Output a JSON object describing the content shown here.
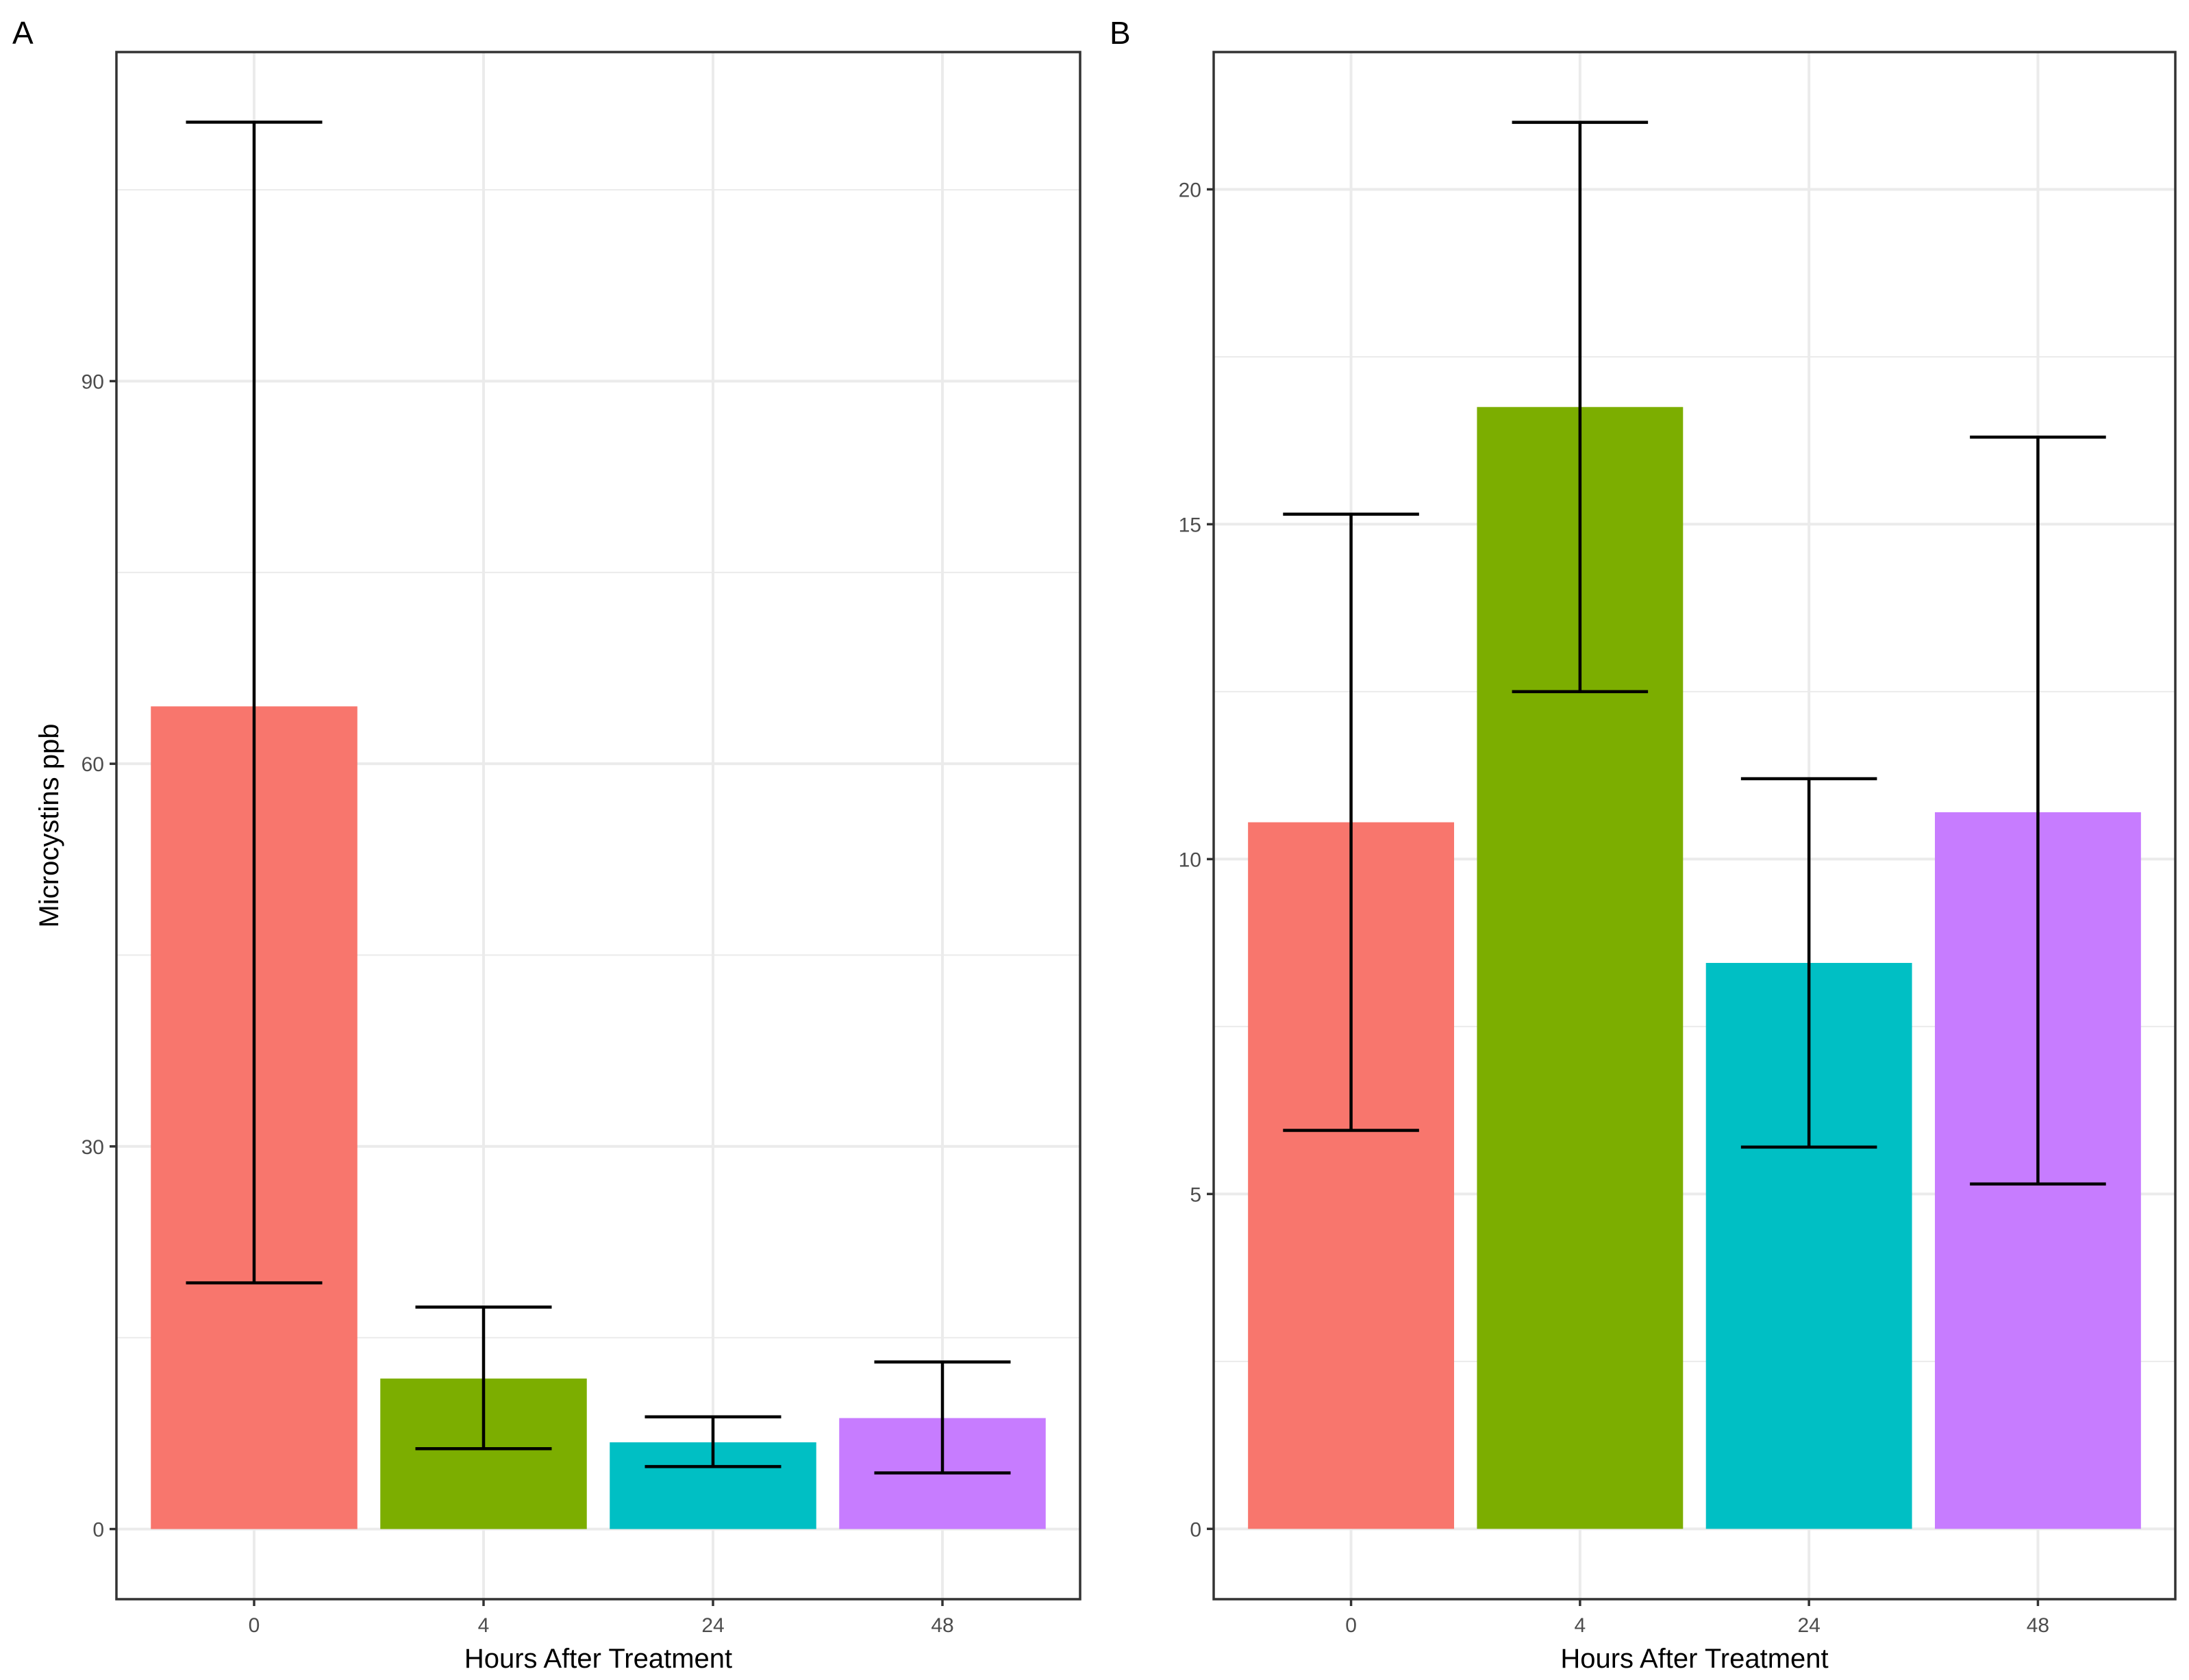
{
  "chart_data": [
    {
      "type": "bar",
      "panel": "A",
      "categories": [
        "0",
        "4",
        "24",
        "48"
      ],
      "values": [
        64.5,
        11.8,
        6.8,
        8.7
      ],
      "error_low": [
        19.3,
        6.3,
        4.9,
        4.4
      ],
      "error_high": [
        110.3,
        17.4,
        8.8,
        13.1
      ],
      "colors": [
        "#F8766D",
        "#7CAE00",
        "#00BFC4",
        "#C77CFF"
      ],
      "xlabel": "Hours After Treatment",
      "ylabel": "Microcystins ppb",
      "ylim": [
        -5.5,
        115.8
      ],
      "yticks": [
        0,
        30,
        60,
        90
      ],
      "ylabels": [
        "0",
        "30",
        "60",
        "90"
      ],
      "grid": true
    },
    {
      "type": "bar",
      "panel": "B",
      "categories": [
        "0",
        "4",
        "24",
        "48"
      ],
      "values": [
        10.55,
        16.75,
        8.45,
        10.7
      ],
      "error_low": [
        5.95,
        12.5,
        5.7,
        5.15
      ],
      "error_high": [
        15.15,
        21.0,
        11.2,
        16.3
      ],
      "colors": [
        "#F8766D",
        "#7CAE00",
        "#00BFC4",
        "#C77CFF"
      ],
      "xlabel": "Hours After Treatment",
      "ylabel": "",
      "ylim": [
        -1.05,
        22.05
      ],
      "yticks": [
        0,
        5,
        10,
        15,
        20
      ],
      "ylabels": [
        "0",
        "5",
        "10",
        "15",
        "20"
      ],
      "grid": true
    }
  ]
}
